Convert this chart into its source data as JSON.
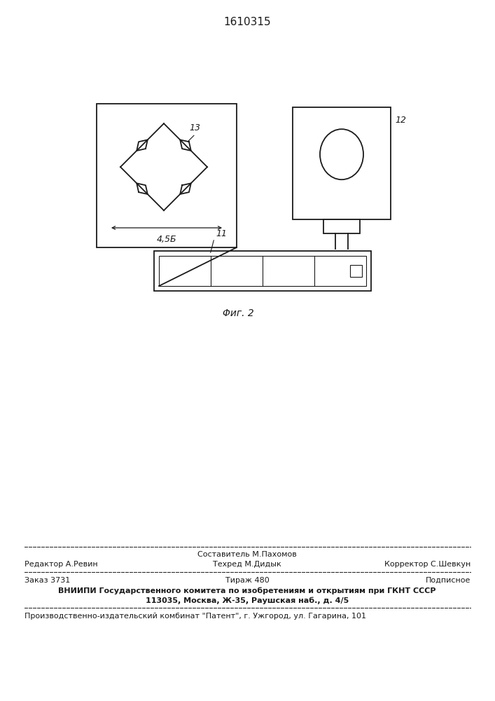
{
  "title": "1610315",
  "fig_label": "Φиг. 2",
  "background_color": "#ffffff",
  "line_color": "#1a1a1a",
  "label_12": "12",
  "label_13": "13",
  "label_11": "11",
  "label_45B": "4,5Б",
  "footer_line1_center": "Составитель М.Пахомов",
  "footer_line1_left": "Редактор А.Ревин",
  "footer_line1_right": "Корректор С.Шевкун",
  "footer_line2_center": "Техред М.Дидык",
  "footer_line3_left": "Заказ 3731",
  "footer_line3_center": "Тираж 480",
  "footer_line3_right": "Подписное",
  "footer_line4": "ВНИИПИ Государственного комитета по изобретениям и открытиям при ГКНТ СССР",
  "footer_line5": "113035, Москва, Ж-35, Раушская наб., д. 4/5",
  "footer_line6": "Производственно-издательский комбинат \"Патент\", г. Ужгород, ул. Гагарина, 101"
}
